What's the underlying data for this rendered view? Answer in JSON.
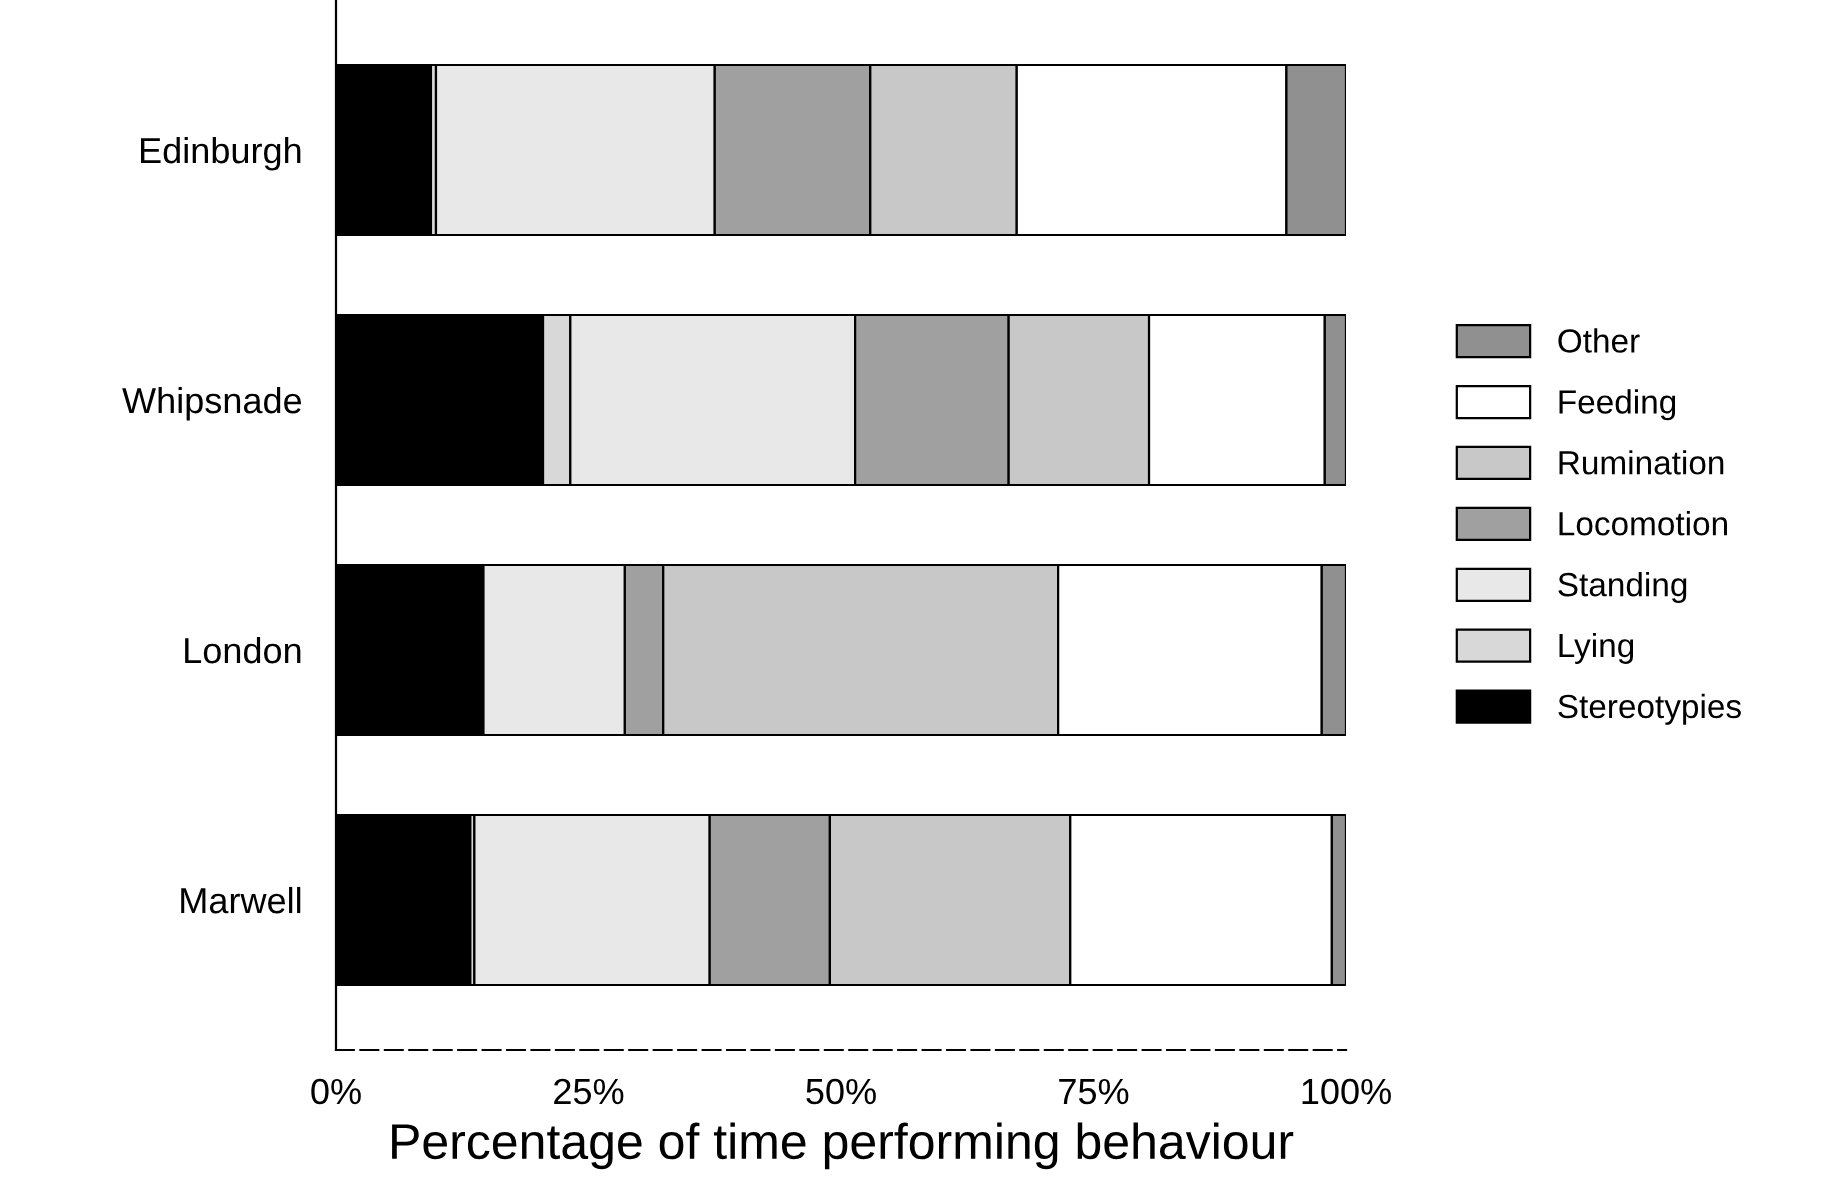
{
  "chart_data": {
    "type": "bar",
    "orientation": "horizontal",
    "stacked": true,
    "xlabel": "Percentage of time performing behaviour",
    "categories": [
      "Edinburgh",
      "Whipsnade",
      "London",
      "Marwell"
    ],
    "series": [
      {
        "name": "Stereotypies",
        "color": "#000000",
        "values": [
          9.4,
          20.5,
          14.6,
          13.3
        ]
      },
      {
        "name": "Lying",
        "color": "#d8d8d8",
        "values": [
          0.5,
          2.7,
          0,
          0.4
        ]
      },
      {
        "name": "Standing",
        "color": "#e8e8e8",
        "values": [
          27.6,
          28.2,
          14.0,
          23.3
        ]
      },
      {
        "name": "Locomotion",
        "color": "#a0a0a0",
        "values": [
          15.4,
          15.2,
          3.8,
          11.9
        ]
      },
      {
        "name": "Rumination",
        "color": "#c8c8c8",
        "values": [
          14.5,
          13.9,
          39.1,
          23.8
        ]
      },
      {
        "name": "Feeding",
        "color": "#ffffff",
        "values": [
          26.7,
          17.4,
          26.1,
          25.9
        ]
      },
      {
        "name": "Other",
        "color": "#909090",
        "values": [
          5.9,
          2.1,
          2.4,
          1.4
        ]
      }
    ],
    "xlim": [
      0,
      100
    ],
    "xticks": [
      {
        "value": 0,
        "label": "0%"
      },
      {
        "value": 25,
        "label": "25%"
      },
      {
        "value": 50,
        "label": "50%"
      },
      {
        "value": 75,
        "label": "75%"
      },
      {
        "value": 100,
        "label": "100%"
      }
    ],
    "grid": false,
    "legend": "right"
  }
}
